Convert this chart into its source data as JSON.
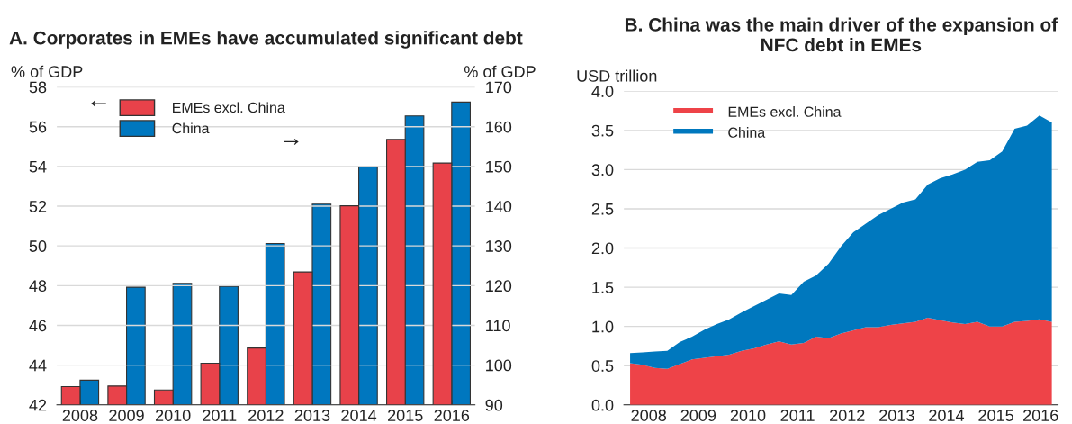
{
  "chart_data": [
    {
      "type": "bar",
      "title": "A. Corporates in EMEs have accumulated significant debt",
      "ylabel": "% of GDP",
      "y2label": "% of GDP",
      "categories": [
        "2008",
        "2009",
        "2010",
        "2011",
        "2012",
        "2013",
        "2014",
        "2015",
        "2016"
      ],
      "series": [
        {
          "name": "EMEs excl. China",
          "color": "#e8424a",
          "values": [
            42.92,
            42.95,
            42.75,
            44.1,
            44.86,
            48.69,
            52.02,
            55.36,
            54.17
          ]
        },
        {
          "name": "China",
          "color": "#0077bf",
          "axis": "y2",
          "values": [
            96.2,
            119.6,
            120.6,
            119.8,
            130.6,
            140.5,
            149.9,
            162.7,
            166.2
          ]
        }
      ],
      "ylim": [
        42,
        58
      ],
      "yticks": [
        42,
        44,
        46,
        48,
        50,
        52,
        54,
        56,
        58
      ],
      "y2lim": [
        90,
        170
      ],
      "y2ticks": [
        90,
        100,
        110,
        120,
        130,
        140,
        150,
        160,
        170
      ],
      "annotations": [
        "←",
        "→"
      ],
      "grid": "y",
      "legend": "top left"
    },
    {
      "type": "area",
      "stacked": true,
      "title": "B. China was the main driver of the expansion of NFC debt in EMEs",
      "ylabel": "USD trillion",
      "x": [
        2008.125,
        2008.375,
        2008.625,
        2008.875,
        2009.125,
        2009.375,
        2009.625,
        2009.875,
        2010.125,
        2010.375,
        2010.625,
        2010.875,
        2011.125,
        2011.375,
        2011.625,
        2011.875,
        2012.125,
        2012.375,
        2012.625,
        2012.875,
        2013.125,
        2013.375,
        2013.625,
        2013.875,
        2014.125,
        2014.375,
        2014.625,
        2014.875,
        2015.125,
        2015.375,
        2015.625,
        2015.875,
        2016.125,
        2016.375,
        2016.625
      ],
      "series": [
        {
          "name": "EMEs excl. China",
          "color": "#ee4348",
          "values": [
            0.53,
            0.51,
            0.47,
            0.46,
            0.52,
            0.58,
            0.6,
            0.62,
            0.64,
            0.69,
            0.72,
            0.77,
            0.81,
            0.77,
            0.79,
            0.87,
            0.85,
            0.91,
            0.95,
            0.99,
            0.99,
            1.02,
            1.04,
            1.06,
            1.11,
            1.08,
            1.05,
            1.03,
            1.06,
            1.0,
            1.0,
            1.06,
            1.07,
            1.09,
            1.06
          ]
        },
        {
          "name": "China",
          "color": "#0078be",
          "values": [
            0.13,
            0.16,
            0.21,
            0.23,
            0.28,
            0.29,
            0.36,
            0.41,
            0.45,
            0.49,
            0.54,
            0.57,
            0.61,
            0.63,
            0.78,
            0.78,
            0.95,
            1.11,
            1.25,
            1.32,
            1.43,
            1.48,
            1.54,
            1.56,
            1.7,
            1.81,
            1.89,
            1.97,
            2.04,
            2.12,
            2.23,
            2.46,
            2.49,
            2.6,
            2.54
          ]
        }
      ],
      "xlim": [
        2008.0,
        2016.75
      ],
      "xticks": [
        {
          "value": 2008.5,
          "label": "2008"
        },
        {
          "value": 2009.5,
          "label": "2009"
        },
        {
          "value": 2010.5,
          "label": "2010"
        },
        {
          "value": 2011.5,
          "label": "2011"
        },
        {
          "value": 2012.5,
          "label": "2012"
        },
        {
          "value": 2013.5,
          "label": "2013"
        },
        {
          "value": 2014.5,
          "label": "2014"
        },
        {
          "value": 2015.5,
          "label": "2015"
        },
        {
          "value": 2016.4,
          "label": "2016"
        }
      ],
      "ylim": [
        0,
        4
      ],
      "yticks": [
        {
          "value": 0,
          "label": "0.0"
        },
        0.5,
        {
          "value": 1,
          "label": "1.0"
        },
        1.5,
        {
          "value": 2,
          "label": "2.0"
        },
        2.5,
        {
          "value": 3,
          "label": "3.0"
        },
        3.5,
        {
          "value": 4,
          "label": "4.0"
        }
      ],
      "grid": "y",
      "legend": "top left"
    }
  ]
}
